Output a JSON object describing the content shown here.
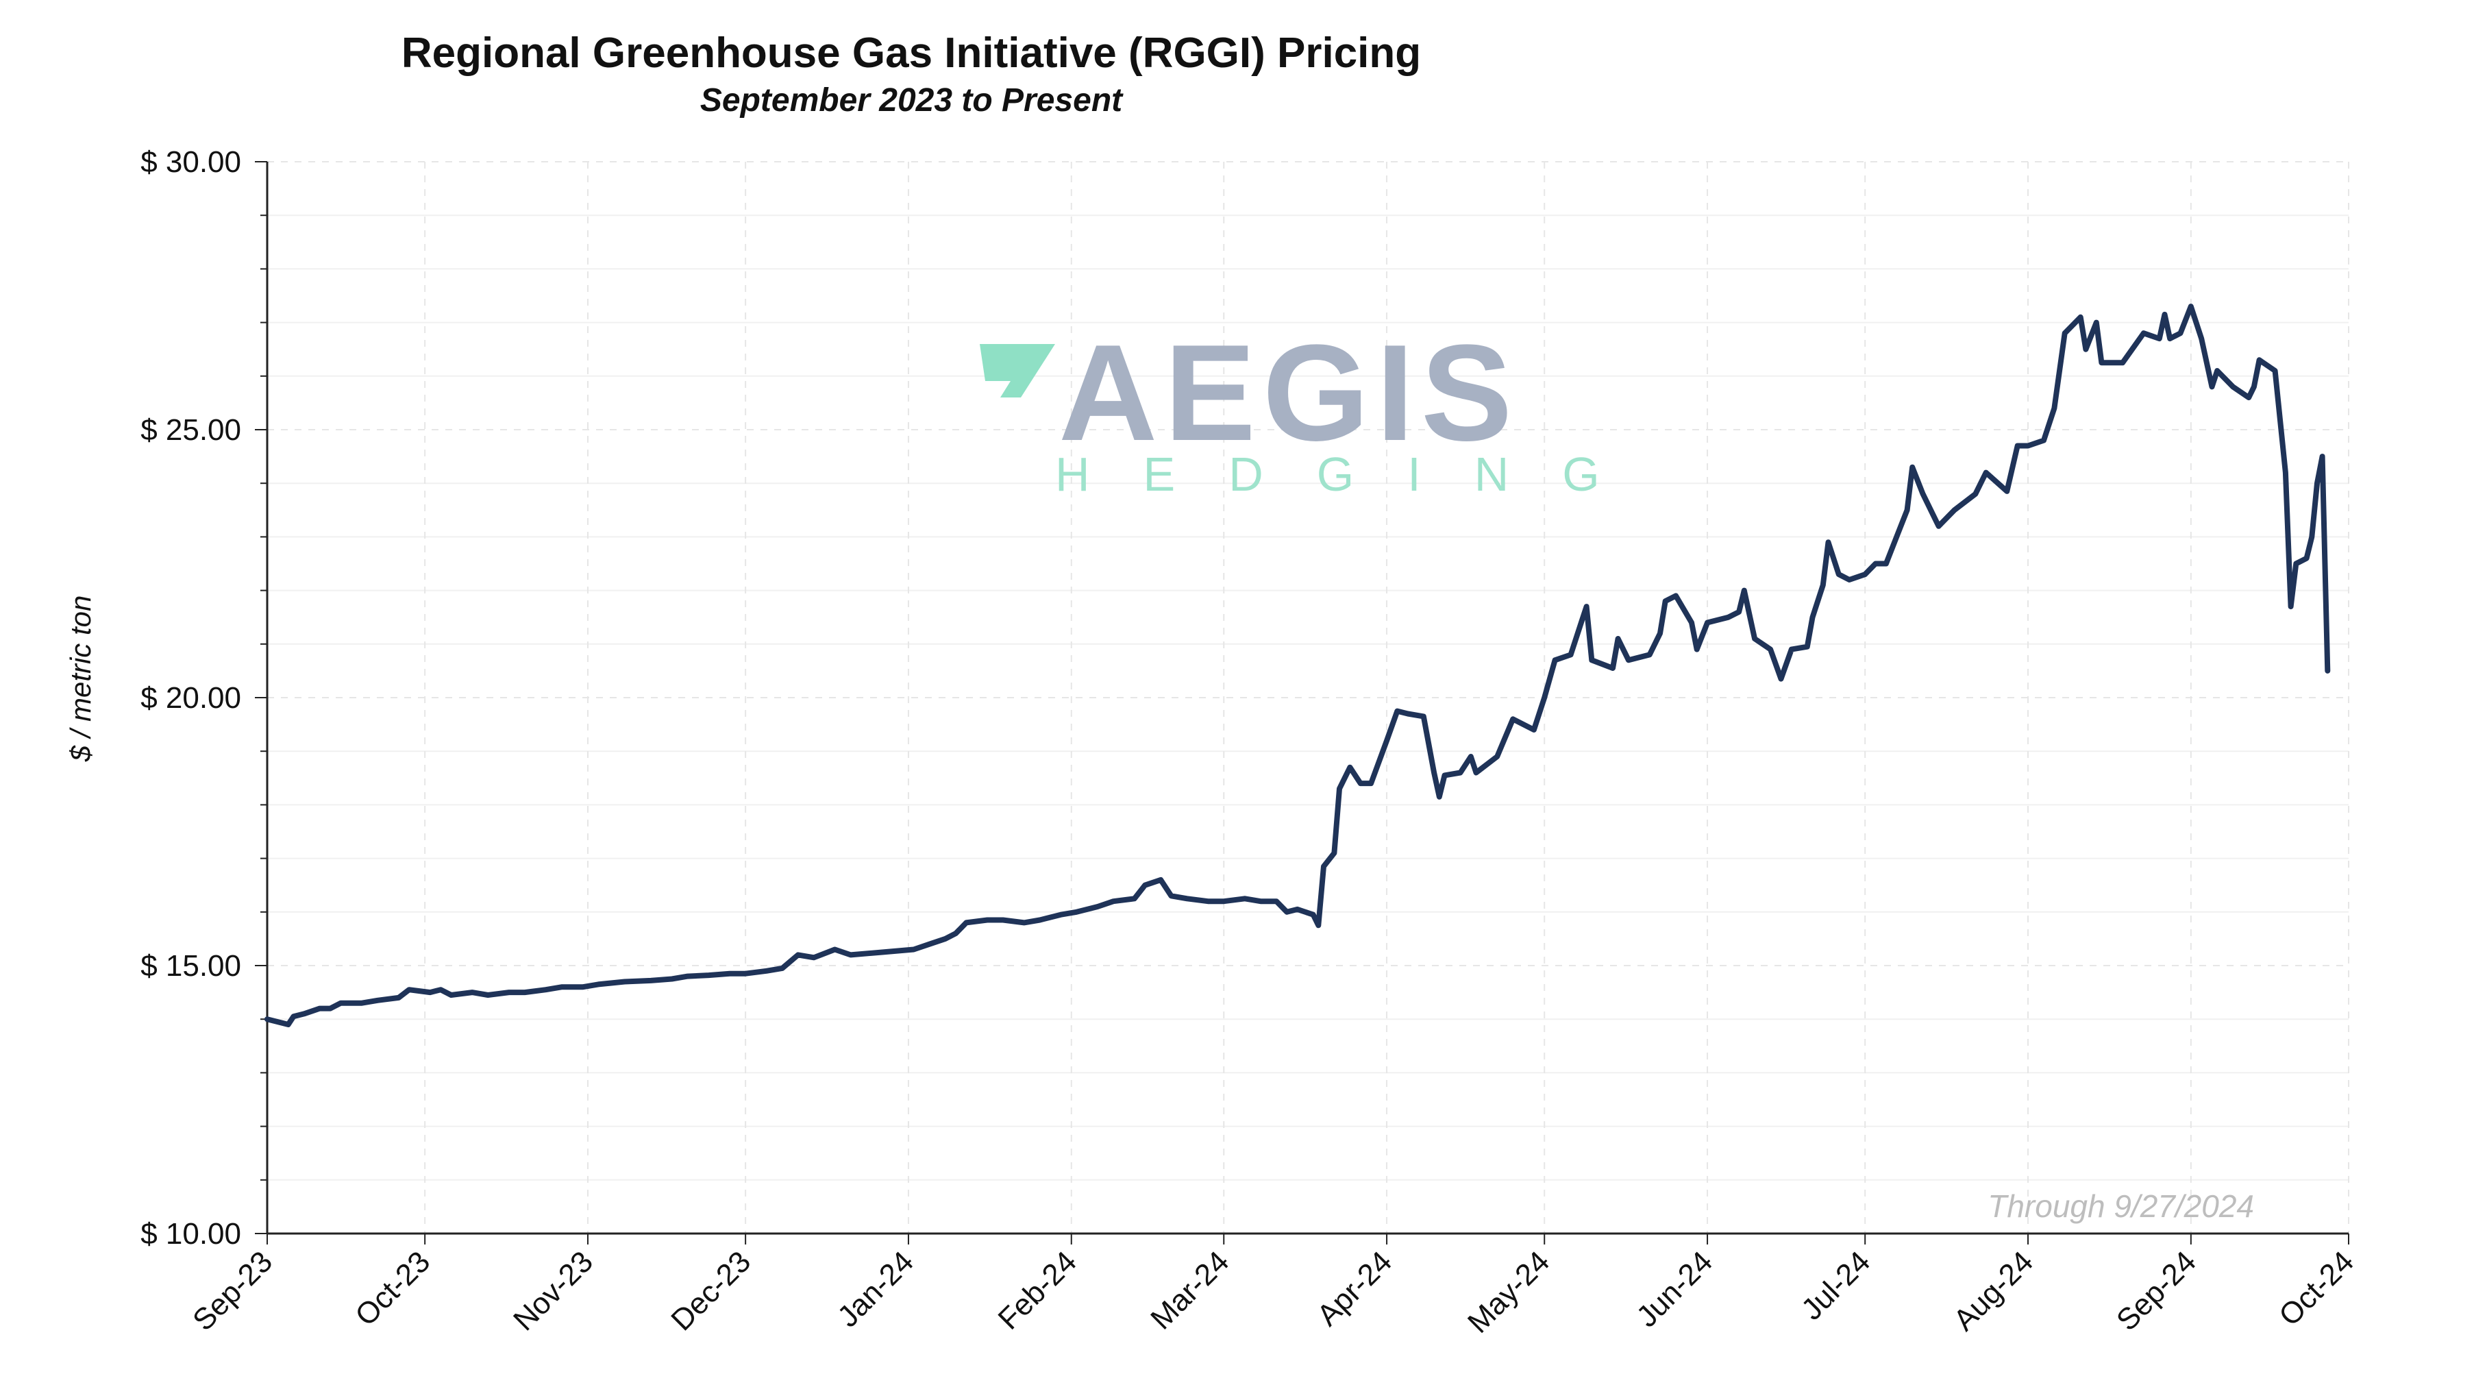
{
  "chart_data": {
    "type": "line",
    "title": "Regional Greenhouse Gas Initiative (RGGI) Pricing",
    "subtitle": "September 2023 to Present",
    "ylabel": "$ / metric ton",
    "xlabel": "",
    "ylim": [
      10,
      30
    ],
    "y_ticks": [
      10,
      15,
      20,
      25,
      30
    ],
    "y_tick_labels": [
      "$ 10.00",
      "$ 15.00",
      "$ 20.00",
      "$ 25.00",
      "$ 30.00"
    ],
    "x_tick_labels": [
      "Sep-23",
      "Oct-23",
      "Nov-23",
      "Dec-23",
      "Jan-24",
      "Feb-24",
      "Mar-24",
      "Apr-24",
      "May-24",
      "Jun-24",
      "Jul-24",
      "Aug-24",
      "Sep-24",
      "Oct-24"
    ],
    "grid": true,
    "line_color": "#1f3358",
    "annotation": "Through 9/27/2024",
    "watermark": {
      "main": "AEGIS",
      "sub": "HEDGING",
      "main_color": "#a7b1c3",
      "accent_color": "#8fe0c5"
    },
    "series": [
      {
        "values": [
          [
            "2023-09-01",
            14.0
          ],
          [
            "2023-09-05",
            13.9
          ],
          [
            "2023-09-06",
            14.05
          ],
          [
            "2023-09-08",
            14.1
          ],
          [
            "2023-09-11",
            14.2
          ],
          [
            "2023-09-13",
            14.2
          ],
          [
            "2023-09-15",
            14.3
          ],
          [
            "2023-09-19",
            14.3
          ],
          [
            "2023-09-22",
            14.35
          ],
          [
            "2023-09-26",
            14.4
          ],
          [
            "2023-09-28",
            14.55
          ],
          [
            "2023-10-02",
            14.5
          ],
          [
            "2023-10-04",
            14.55
          ],
          [
            "2023-10-06",
            14.45
          ],
          [
            "2023-10-10",
            14.5
          ],
          [
            "2023-10-13",
            14.45
          ],
          [
            "2023-10-17",
            14.5
          ],
          [
            "2023-10-20",
            14.5
          ],
          [
            "2023-10-24",
            14.55
          ],
          [
            "2023-10-27",
            14.6
          ],
          [
            "2023-10-31",
            14.6
          ],
          [
            "2023-11-03",
            14.65
          ],
          [
            "2023-11-08",
            14.7
          ],
          [
            "2023-11-13",
            14.72
          ],
          [
            "2023-11-17",
            14.75
          ],
          [
            "2023-11-20",
            14.8
          ],
          [
            "2023-11-24",
            14.82
          ],
          [
            "2023-11-28",
            14.85
          ],
          [
            "2023-12-01",
            14.85
          ],
          [
            "2023-12-05",
            14.9
          ],
          [
            "2023-12-08",
            14.95
          ],
          [
            "2023-12-11",
            15.2
          ],
          [
            "2023-12-14",
            15.15
          ],
          [
            "2023-12-18",
            15.3
          ],
          [
            "2023-12-21",
            15.2
          ],
          [
            "2023-12-27",
            15.25
          ],
          [
            "2024-01-02",
            15.3
          ],
          [
            "2024-01-05",
            15.4
          ],
          [
            "2024-01-08",
            15.5
          ],
          [
            "2024-01-10",
            15.6
          ],
          [
            "2024-01-12",
            15.8
          ],
          [
            "2024-01-16",
            15.85
          ],
          [
            "2024-01-19",
            15.85
          ],
          [
            "2024-01-23",
            15.8
          ],
          [
            "2024-01-26",
            15.85
          ],
          [
            "2024-01-30",
            15.95
          ],
          [
            "2024-02-02",
            16.0
          ],
          [
            "2024-02-06",
            16.1
          ],
          [
            "2024-02-09",
            16.2
          ],
          [
            "2024-02-13",
            16.25
          ],
          [
            "2024-02-15",
            16.5
          ],
          [
            "2024-02-18",
            16.6
          ],
          [
            "2024-02-20",
            16.3
          ],
          [
            "2024-02-23",
            16.25
          ],
          [
            "2024-02-27",
            16.2
          ],
          [
            "2024-03-01",
            16.2
          ],
          [
            "2024-03-05",
            16.25
          ],
          [
            "2024-03-08",
            16.2
          ],
          [
            "2024-03-11",
            16.2
          ],
          [
            "2024-03-13",
            16.0
          ],
          [
            "2024-03-15",
            16.05
          ],
          [
            "2024-03-18",
            15.95
          ],
          [
            "2024-03-19",
            15.75
          ],
          [
            "2024-03-20",
            16.85
          ],
          [
            "2024-03-22",
            17.1
          ],
          [
            "2024-03-23",
            18.3
          ],
          [
            "2024-03-25",
            18.7
          ],
          [
            "2024-03-27",
            18.4
          ],
          [
            "2024-03-29",
            18.4
          ],
          [
            "2024-04-01",
            19.2
          ],
          [
            "2024-04-03",
            19.75
          ],
          [
            "2024-04-05",
            19.7
          ],
          [
            "2024-04-08",
            19.65
          ],
          [
            "2024-04-10",
            18.6
          ],
          [
            "2024-04-11",
            18.15
          ],
          [
            "2024-04-12",
            18.55
          ],
          [
            "2024-04-15",
            18.6
          ],
          [
            "2024-04-17",
            18.9
          ],
          [
            "2024-04-18",
            18.6
          ],
          [
            "2024-04-22",
            18.9
          ],
          [
            "2024-04-25",
            19.6
          ],
          [
            "2024-04-29",
            19.4
          ],
          [
            "2024-05-01",
            20.0
          ],
          [
            "2024-05-03",
            20.7
          ],
          [
            "2024-05-06",
            20.8
          ],
          [
            "2024-05-08",
            21.4
          ],
          [
            "2024-05-09",
            21.7
          ],
          [
            "2024-05-10",
            20.7
          ],
          [
            "2024-05-14",
            20.55
          ],
          [
            "2024-05-15",
            21.1
          ],
          [
            "2024-05-17",
            20.7
          ],
          [
            "2024-05-21",
            20.8
          ],
          [
            "2024-05-23",
            21.2
          ],
          [
            "2024-05-24",
            21.8
          ],
          [
            "2024-05-26",
            21.9
          ],
          [
            "2024-05-29",
            21.4
          ],
          [
            "2024-05-30",
            20.9
          ],
          [
            "2024-06-01",
            21.4
          ],
          [
            "2024-06-05",
            21.5
          ],
          [
            "2024-06-07",
            21.6
          ],
          [
            "2024-06-08",
            22.0
          ],
          [
            "2024-06-10",
            21.1
          ],
          [
            "2024-06-13",
            20.9
          ],
          [
            "2024-06-15",
            20.35
          ],
          [
            "2024-06-17",
            20.9
          ],
          [
            "2024-06-20",
            20.95
          ],
          [
            "2024-06-21",
            21.5
          ],
          [
            "2024-06-23",
            22.1
          ],
          [
            "2024-06-24",
            22.9
          ],
          [
            "2024-06-26",
            22.3
          ],
          [
            "2024-06-28",
            22.2
          ],
          [
            "2024-07-01",
            22.3
          ],
          [
            "2024-07-03",
            22.5
          ],
          [
            "2024-07-05",
            22.5
          ],
          [
            "2024-07-07",
            23.0
          ],
          [
            "2024-07-09",
            23.5
          ],
          [
            "2024-07-10",
            24.3
          ],
          [
            "2024-07-12",
            23.8
          ],
          [
            "2024-07-15",
            23.2
          ],
          [
            "2024-07-18",
            23.5
          ],
          [
            "2024-07-22",
            23.8
          ],
          [
            "2024-07-24",
            24.2
          ],
          [
            "2024-07-28",
            23.85
          ],
          [
            "2024-07-30",
            24.7
          ],
          [
            "2024-08-01",
            24.7
          ],
          [
            "2024-08-04",
            24.8
          ],
          [
            "2024-08-06",
            25.4
          ],
          [
            "2024-08-08",
            26.8
          ],
          [
            "2024-08-11",
            27.1
          ],
          [
            "2024-08-12",
            26.5
          ],
          [
            "2024-08-14",
            27.0
          ],
          [
            "2024-08-15",
            26.25
          ],
          [
            "2024-08-19",
            26.25
          ],
          [
            "2024-08-23",
            26.8
          ],
          [
            "2024-08-26",
            26.7
          ],
          [
            "2024-08-27",
            27.15
          ],
          [
            "2024-08-28",
            26.7
          ],
          [
            "2024-08-30",
            26.8
          ],
          [
            "2024-09-01",
            27.3
          ],
          [
            "2024-09-03",
            26.7
          ],
          [
            "2024-09-05",
            25.8
          ],
          [
            "2024-09-06",
            26.1
          ],
          [
            "2024-09-09",
            25.8
          ],
          [
            "2024-09-12",
            25.6
          ],
          [
            "2024-09-13",
            25.8
          ],
          [
            "2024-09-14",
            26.3
          ],
          [
            "2024-09-17",
            26.1
          ],
          [
            "2024-09-19",
            24.2
          ],
          [
            "2024-09-20",
            21.7
          ],
          [
            "2024-09-21",
            22.5
          ],
          [
            "2024-09-23",
            22.6
          ],
          [
            "2024-09-24",
            23.0
          ],
          [
            "2024-09-25",
            24.0
          ],
          [
            "2024-09-26",
            24.5
          ],
          [
            "2024-09-27",
            20.5
          ]
        ]
      }
    ]
  }
}
